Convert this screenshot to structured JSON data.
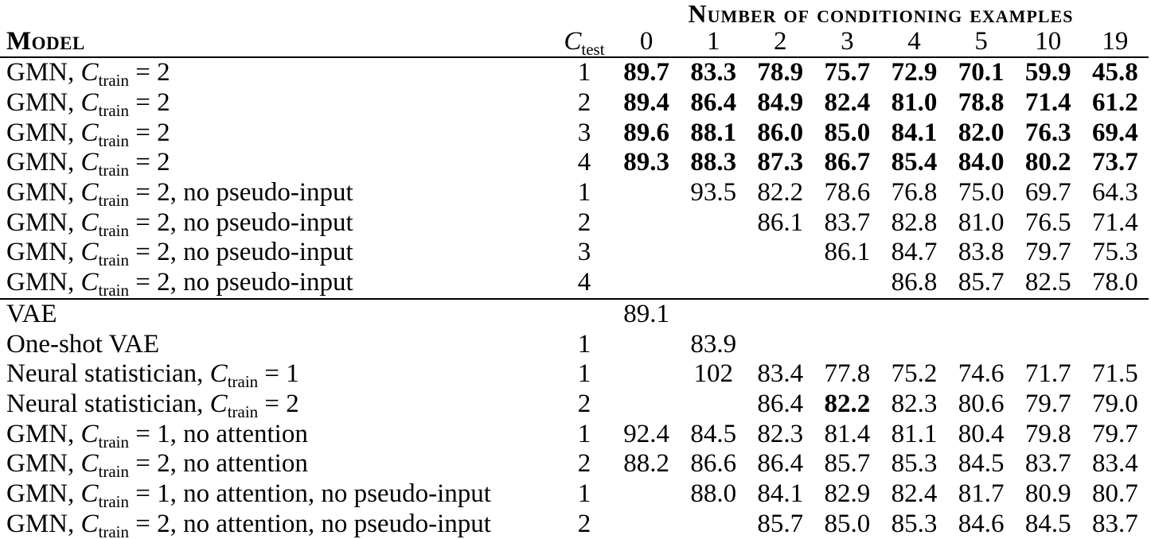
{
  "colors": {
    "text": "#000000",
    "background": "#ffffff",
    "rule": "#000000"
  },
  "table": {
    "group_header": "Number of conditioning examples",
    "model_header": "Model",
    "ctest_var": "C",
    "ctest_subscript": "test",
    "columns": [
      "0",
      "1",
      "2",
      "3",
      "4",
      "5",
      "10",
      "19"
    ],
    "sections": [
      {
        "rows": [
          {
            "model": "GMN, C_train = 2",
            "ctest": "1",
            "bold_values": true,
            "values": [
              "89.7",
              "83.3",
              "78.9",
              "75.7",
              "72.9",
              "70.1",
              "59.9",
              "45.8"
            ]
          },
          {
            "model": "GMN, C_train = 2",
            "ctest": "2",
            "bold_values": true,
            "values": [
              "89.4",
              "86.4",
              "84.9",
              "82.4",
              "81.0",
              "78.8",
              "71.4",
              "61.2"
            ]
          },
          {
            "model": "GMN, C_train = 2",
            "ctest": "3",
            "bold_values": true,
            "values": [
              "89.6",
              "88.1",
              "86.0",
              "85.0",
              "84.1",
              "82.0",
              "76.3",
              "69.4"
            ]
          },
          {
            "model": "GMN, C_train = 2",
            "ctest": "4",
            "bold_values": true,
            "values": [
              "89.3",
              "88.3",
              "87.3",
              "86.7",
              "85.4",
              "84.0",
              "80.2",
              "73.7"
            ]
          },
          {
            "model": "GMN, C_train = 2, no pseudo-input",
            "ctest": "1",
            "bold_values": false,
            "values": [
              "",
              "93.5",
              "82.2",
              "78.6",
              "76.8",
              "75.0",
              "69.7",
              "64.3"
            ]
          },
          {
            "model": "GMN, C_train = 2, no pseudo-input",
            "ctest": "2",
            "bold_values": false,
            "values": [
              "",
              "",
              "86.1",
              "83.7",
              "82.8",
              "81.0",
              "76.5",
              "71.4"
            ]
          },
          {
            "model": "GMN, C_train = 2, no pseudo-input",
            "ctest": "3",
            "bold_values": false,
            "values": [
              "",
              "",
              "",
              "86.1",
              "84.7",
              "83.8",
              "79.7",
              "75.3"
            ]
          },
          {
            "model": "GMN, C_train = 2, no pseudo-input",
            "ctest": "4",
            "bold_values": false,
            "values": [
              "",
              "",
              "",
              "",
              "86.8",
              "85.7",
              "82.5",
              "78.0"
            ]
          }
        ]
      },
      {
        "rows": [
          {
            "model": "VAE",
            "ctest": "",
            "bold_values": false,
            "values": [
              "89.1",
              "",
              "",
              "",
              "",
              "",
              "",
              ""
            ]
          },
          {
            "model": "One-shot VAE",
            "ctest": "1",
            "bold_values": false,
            "values": [
              "",
              "83.9",
              "",
              "",
              "",
              "",
              "",
              ""
            ]
          },
          {
            "model": "Neural statistician, C_train = 1",
            "ctest": "1",
            "bold_values": false,
            "values": [
              "",
              "102",
              "83.4",
              "77.8",
              "75.2",
              "74.6",
              "71.7",
              "71.5"
            ]
          },
          {
            "model": "Neural statistician, C_train = 2",
            "ctest": "2",
            "bold_values": false,
            "bold_cols": [
              3
            ],
            "values": [
              "",
              "",
              "86.4",
              "82.2",
              "82.3",
              "80.6",
              "79.7",
              "79.0"
            ]
          },
          {
            "model": "GMN, C_train = 1, no attention",
            "ctest": "1",
            "bold_values": false,
            "values": [
              "92.4",
              "84.5",
              "82.3",
              "81.4",
              "81.1",
              "80.4",
              "79.8",
              "79.7"
            ]
          },
          {
            "model": "GMN, C_train = 2, no attention",
            "ctest": "2",
            "bold_values": false,
            "values": [
              "88.2",
              "86.6",
              "86.4",
              "85.7",
              "85.3",
              "84.5",
              "83.7",
              "83.4"
            ]
          },
          {
            "model": "GMN, C_train = 1, no attention, no pseudo-input",
            "ctest": "1",
            "bold_values": false,
            "values": [
              "",
              "88.0",
              "84.1",
              "82.9",
              "82.4",
              "81.7",
              "80.9",
              "80.7"
            ]
          },
          {
            "model": "GMN, C_train = 2, no attention, no pseudo-input",
            "ctest": "2",
            "bold_values": false,
            "values": [
              "",
              "",
              "85.7",
              "85.0",
              "85.3",
              "84.6",
              "84.5",
              "83.7"
            ]
          }
        ]
      }
    ]
  }
}
